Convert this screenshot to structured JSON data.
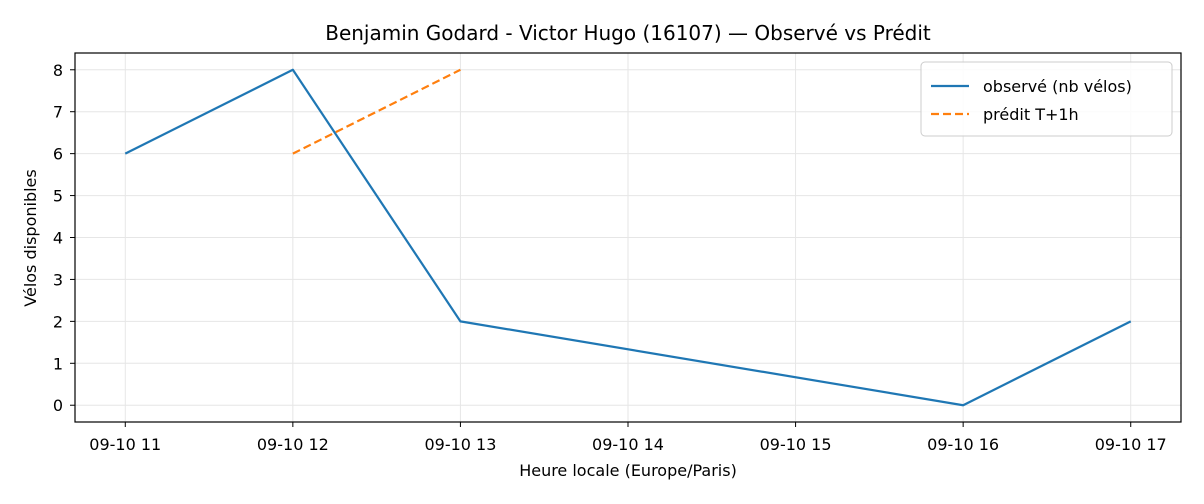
{
  "chart_data": {
    "type": "line",
    "title": "Benjamin Godard - Victor Hugo (16107) — Observé vs Prédit",
    "xlabel": "Heure locale (Europe/Paris)",
    "ylabel": "Vélos disponibles",
    "x_ticks": [
      "09-10 11",
      "09-10 12",
      "09-10 13",
      "09-10 14",
      "09-10 15",
      "09-10 16",
      "09-10 17"
    ],
    "y_ticks": [
      "0",
      "1",
      "2",
      "3",
      "4",
      "5",
      "6",
      "7",
      "8"
    ],
    "xlim": [
      "2023-09-10 10:42",
      "2023-09-10 17:18"
    ],
    "ylim": [
      -0.4,
      8.4
    ],
    "grid": true,
    "legend_position": "top-right",
    "series": [
      {
        "name": "observé (nb vélos)",
        "color": "#1f77b4",
        "style": "solid",
        "points": [
          {
            "x": "2023-09-10 11:00",
            "y": 6
          },
          {
            "x": "2023-09-10 12:00",
            "y": 8
          },
          {
            "x": "2023-09-10 13:00",
            "y": 2
          },
          {
            "x": "2023-09-10 16:00",
            "y": 0
          },
          {
            "x": "2023-09-10 17:00",
            "y": 2
          }
        ]
      },
      {
        "name": "prédit T+1h",
        "color": "#ff7f0e",
        "style": "dashed",
        "points": [
          {
            "x": "2023-09-10 12:00",
            "y": 6
          },
          {
            "x": "2023-09-10 13:00",
            "y": 8
          }
        ]
      }
    ]
  }
}
